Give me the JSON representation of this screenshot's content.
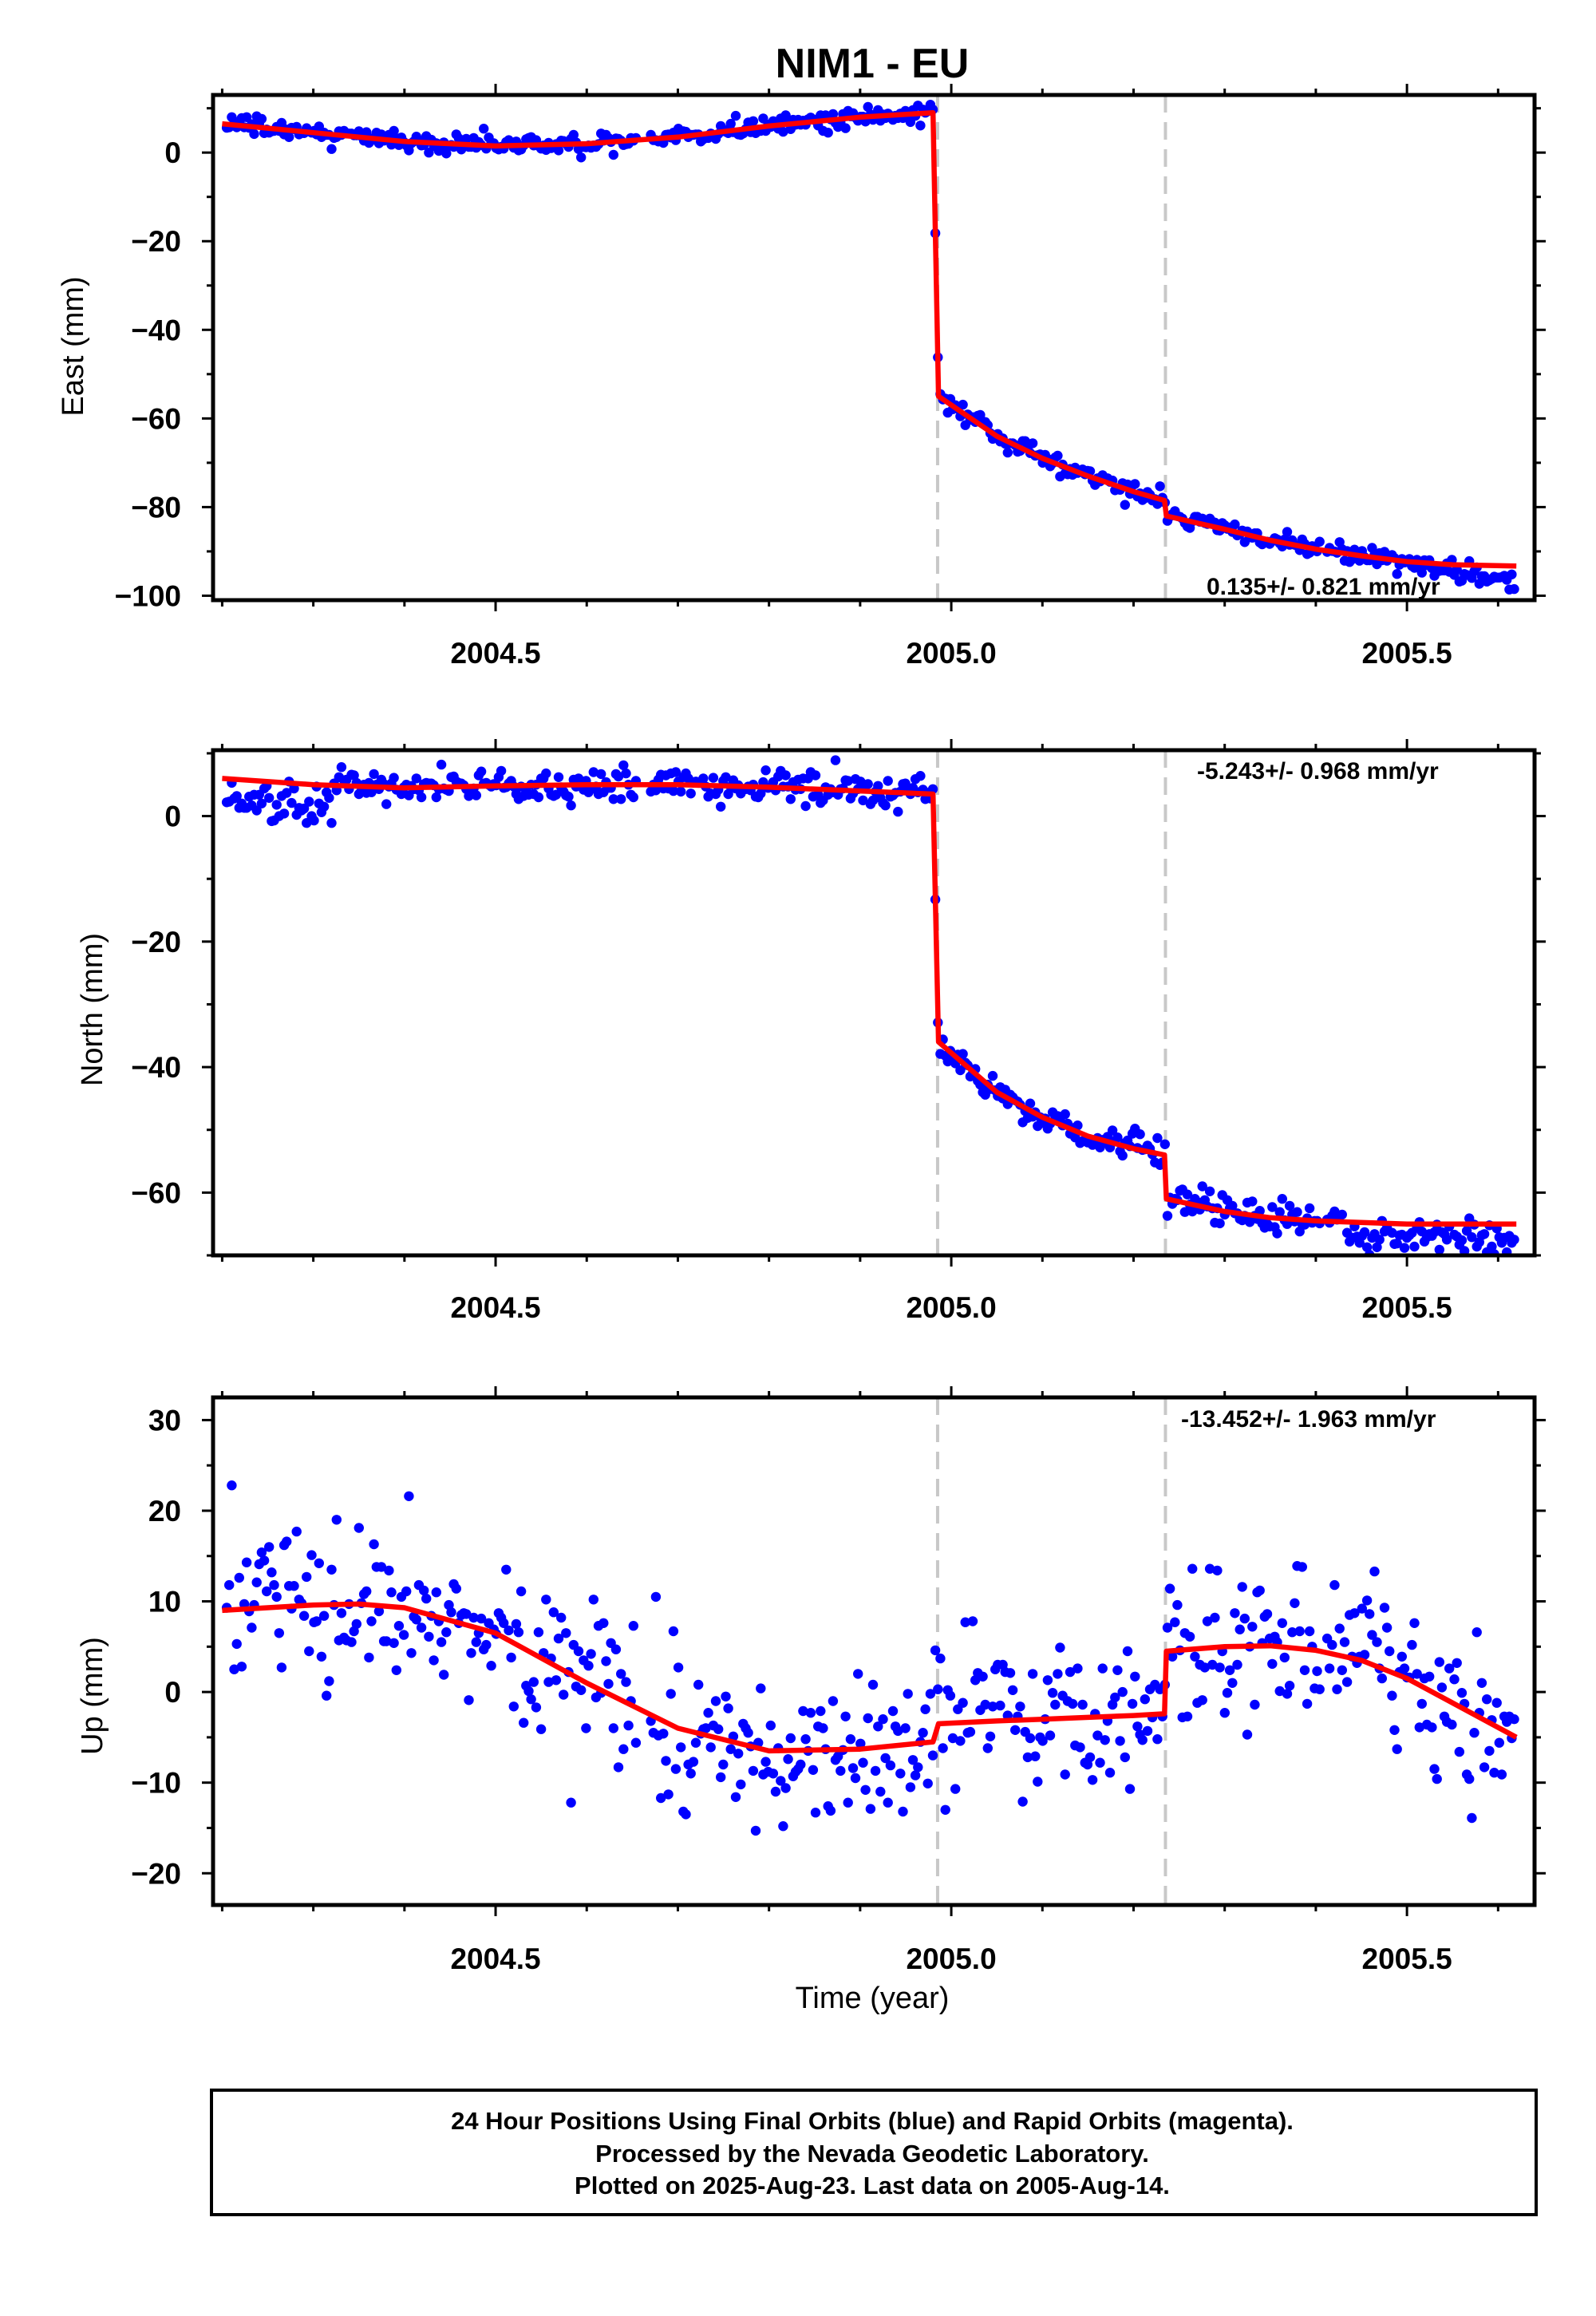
{
  "title": "NIM1 - EU",
  "xlabel": "Time (year)",
  "xticks": [
    "2004.5",
    "2005.0",
    "2005.5"
  ],
  "footer": [
    "24 Hour Positions Using Final Orbits (blue) and Rapid Orbits (magenta).",
    "Processed by the Nevada Geodetic Laboratory.",
    "Plotted on 2025-Aug-23. Last data on 2005-Aug-14."
  ],
  "colors": {
    "data": "#0000ff",
    "model": "#ff0000",
    "breaks": "#c8c8c8",
    "frame": "#000000"
  },
  "chart_data": [
    {
      "type": "scatter",
      "component": "East",
      "ylabel": "East (mm)",
      "rate_text": "0.135+/- 0.821 mm/yr",
      "xlim": [
        2004.19,
        2005.64
      ],
      "ylim": [
        -101,
        13
      ],
      "yticks": [
        0,
        -20,
        -40,
        -60,
        -80,
        -100
      ],
      "breaks": [
        2004.985,
        2005.235
      ],
      "model": {
        "x": [
          2004.2,
          2004.3,
          2004.4,
          2004.5,
          2004.6,
          2004.7,
          2004.8,
          2004.9,
          2004.98,
          2004.986,
          2005.05,
          2005.1,
          2005.15,
          2005.2,
          2005.234,
          2005.236,
          2005.3,
          2005.35,
          2005.4,
          2005.45,
          2005.5,
          2005.55,
          2005.62
        ],
        "y": [
          6.5,
          4.5,
          2.5,
          1.5,
          2.0,
          3.5,
          6.0,
          8.0,
          9.0,
          -55.0,
          -64.0,
          -69.0,
          -73.0,
          -76.5,
          -78.5,
          -82.0,
          -85.0,
          -87.5,
          -89.5,
          -91.0,
          -92.3,
          -93.0,
          -93.3
        ]
      },
      "points": {
        "x": [],
        "y": []
      }
    },
    {
      "type": "scatter",
      "component": "North",
      "ylabel": "North (mm)",
      "rate_text": "-5.243+/- 0.968 mm/yr",
      "xlim": [
        2004.19,
        2005.64
      ],
      "ylim": [
        -70,
        10.5
      ],
      "yticks": [
        0,
        -20,
        -40,
        -60
      ],
      "breaks": [
        2004.985,
        2005.235
      ],
      "model": {
        "x": [
          2004.2,
          2004.3,
          2004.4,
          2004.5,
          2004.6,
          2004.7,
          2004.8,
          2004.9,
          2004.98,
          2004.986,
          2005.05,
          2005.1,
          2005.15,
          2005.2,
          2005.234,
          2005.236,
          2005.3,
          2005.35,
          2005.4,
          2005.5,
          2005.62
        ],
        "y": [
          6.0,
          5.0,
          4.5,
          4.8,
          5.0,
          5.0,
          4.6,
          4.0,
          3.5,
          -36.0,
          -44.0,
          -48.0,
          -51.0,
          -53.0,
          -54.0,
          -61.0,
          -63.0,
          -64.0,
          -64.5,
          -65.0,
          -65.0
        ]
      },
      "points": {
        "x": [],
        "y": []
      }
    },
    {
      "type": "scatter",
      "component": "Up",
      "ylabel": "Up (mm)",
      "rate_text": "-13.452+/- 1.963 mm/yr",
      "xlim": [
        2004.19,
        2005.64
      ],
      "ylim": [
        -23.5,
        32.5
      ],
      "yticks": [
        30,
        20,
        10,
        0,
        -10,
        -20
      ],
      "breaks": [
        2004.985,
        2005.235
      ],
      "model": {
        "x": [
          2004.2,
          2004.3,
          2004.35,
          2004.4,
          2004.5,
          2004.6,
          2004.7,
          2004.8,
          2004.9,
          2004.98,
          2004.986,
          2005.05,
          2005.1,
          2005.15,
          2005.2,
          2005.234,
          2005.236,
          2005.3,
          2005.35,
          2005.4,
          2005.45,
          2005.5,
          2005.55,
          2005.62
        ],
        "y": [
          9.0,
          9.6,
          9.7,
          9.3,
          6.5,
          1.0,
          -4.0,
          -6.5,
          -6.3,
          -5.5,
          -3.5,
          -3.2,
          -3.0,
          -2.8,
          -2.6,
          -2.4,
          4.5,
          5.0,
          5.1,
          4.6,
          3.5,
          1.5,
          -1.2,
          -5.0
        ]
      },
      "points": {
        "x": [],
        "y": []
      }
    }
  ]
}
